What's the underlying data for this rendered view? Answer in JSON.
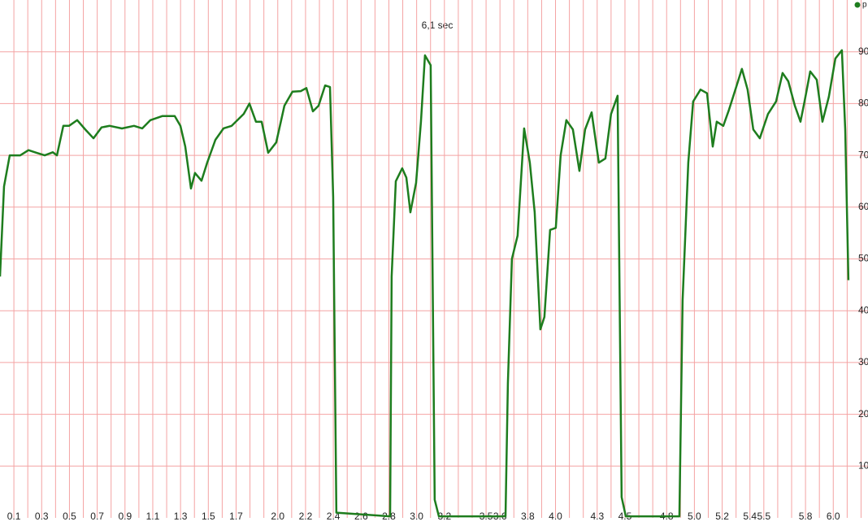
{
  "chart_data": {
    "type": "line",
    "title": "6,1 sec",
    "x": [
      0,
      0.029,
      0.07,
      0.146,
      0.205,
      0.263,
      0.322,
      0.38,
      0.41,
      0.456,
      0.497,
      0.556,
      0.614,
      0.673,
      0.731,
      0.79,
      0.878,
      0.965,
      1.024,
      1.083,
      1.17,
      1.258,
      1.299,
      1.334,
      1.375,
      1.404,
      1.451,
      1.492,
      1.551,
      1.609,
      1.668,
      1.755,
      1.796,
      1.843,
      1.884,
      1.931,
      1.989,
      2.048,
      2.106,
      2.165,
      2.206,
      2.253,
      2.294,
      2.341,
      2.376,
      2.399,
      2.422,
      2.809,
      2.82,
      2.85,
      2.896,
      2.926,
      2.955,
      2.996,
      3.031,
      3.06,
      3.101,
      3.13,
      3.16,
      3.64,
      3.657,
      3.686,
      3.727,
      3.774,
      3.815,
      3.85,
      3.891,
      3.92,
      3.961,
      4.002,
      4.037,
      4.078,
      4.125,
      4.172,
      4.213,
      4.26,
      4.312,
      4.359,
      4.4,
      4.447,
      4.476,
      4.506,
      4.892,
      4.915,
      4.956,
      4.991,
      5.044,
      5.091,
      5.132,
      5.161,
      5.208,
      5.249,
      5.295,
      5.342,
      5.383,
      5.424,
      5.471,
      5.53,
      5.588,
      5.635,
      5.676,
      5.723,
      5.764,
      5.793,
      5.834,
      5.881,
      5.922,
      5.968,
      6.015,
      6.062,
      6.086,
      6.109
    ],
    "series": [
      {
        "name": "p",
        "color": "#1e7d1e",
        "values": [
          46.6,
          64,
          70,
          70,
          71,
          70.5,
          70,
          70.6,
          70,
          75.7,
          75.7,
          76.8,
          75,
          73.3,
          75.4,
          75.7,
          75.2,
          75.7,
          75.2,
          76.8,
          77.6,
          77.6,
          75.7,
          71.7,
          63.6,
          66.6,
          65.1,
          68.6,
          73,
          75.2,
          75.7,
          78,
          80,
          76.5,
          76.5,
          70.5,
          72.5,
          79.6,
          82.3,
          82.4,
          83,
          78.5,
          79.6,
          83.5,
          83.2,
          62,
          1,
          0.3,
          46.6,
          65,
          67.5,
          65.7,
          59,
          64.7,
          76.5,
          89.3,
          87.4,
          3.5,
          0.3,
          0.3,
          26,
          50,
          54.5,
          75.2,
          68.6,
          59,
          36.4,
          38.8,
          55.6,
          56,
          70,
          76.8,
          75,
          67,
          75,
          78.3,
          68.6,
          69.4,
          78,
          81.5,
          4,
          0.3,
          0.3,
          42,
          68.6,
          80.4,
          82.7,
          82,
          71.7,
          76.5,
          75.7,
          78.8,
          82.7,
          86.7,
          82.7,
          75,
          73.3,
          78,
          80.4,
          85.9,
          84.3,
          79.6,
          76.5,
          80.4,
          86.2,
          84.6,
          76.5,
          81.3,
          88.7,
          90.3,
          75,
          45.9
        ]
      }
    ],
    "xlim": [
      0,
      6.25
    ],
    "ylim": [
      0,
      100
    ],
    "xticks": [
      0.1,
      0.3,
      0.5,
      0.7,
      0.9,
      1.1,
      1.3,
      1.5,
      1.7,
      {
        "value": 2,
        "label": "2.0"
      },
      2.2,
      2.4,
      2.6,
      2.8,
      {
        "value": 3,
        "label": "3.0"
      },
      3.2,
      3.5,
      3.6,
      3.8,
      {
        "value": 4,
        "label": "4.0"
      },
      4.3,
      4.5,
      4.8,
      {
        "value": 5,
        "label": "5.0"
      },
      5.2,
      5.4,
      5.5,
      5.8,
      {
        "value": 6,
        "label": "6.0"
      }
    ],
    "xgrid": [
      0.1,
      0.2,
      0.3,
      0.4,
      0.5,
      0.6,
      0.7,
      0.8,
      0.9,
      1.0,
      1.1,
      1.2,
      1.3,
      1.4,
      1.5,
      1.6,
      1.7,
      1.8,
      1.9,
      2.0,
      2.1,
      2.2,
      2.3,
      2.4,
      2.5,
      2.6,
      2.7,
      2.8,
      2.9,
      3.0,
      3.1,
      3.2,
      3.3,
      3.4,
      3.5,
      3.6,
      3.7,
      3.8,
      3.9,
      4.0,
      4.1,
      4.2,
      4.3,
      4.4,
      4.5,
      4.6,
      4.7,
      4.8,
      4.9,
      5.0,
      5.1,
      5.2,
      5.3,
      5.4,
      5.5,
      5.6,
      5.7,
      5.8,
      5.9,
      6.0,
      6.1,
      6.2
    ],
    "yticks": [
      10,
      20,
      30,
      40,
      50,
      60,
      70,
      80,
      90
    ],
    "grid": true,
    "grid_color": "#f4a3a3",
    "legend": "top-right"
  }
}
